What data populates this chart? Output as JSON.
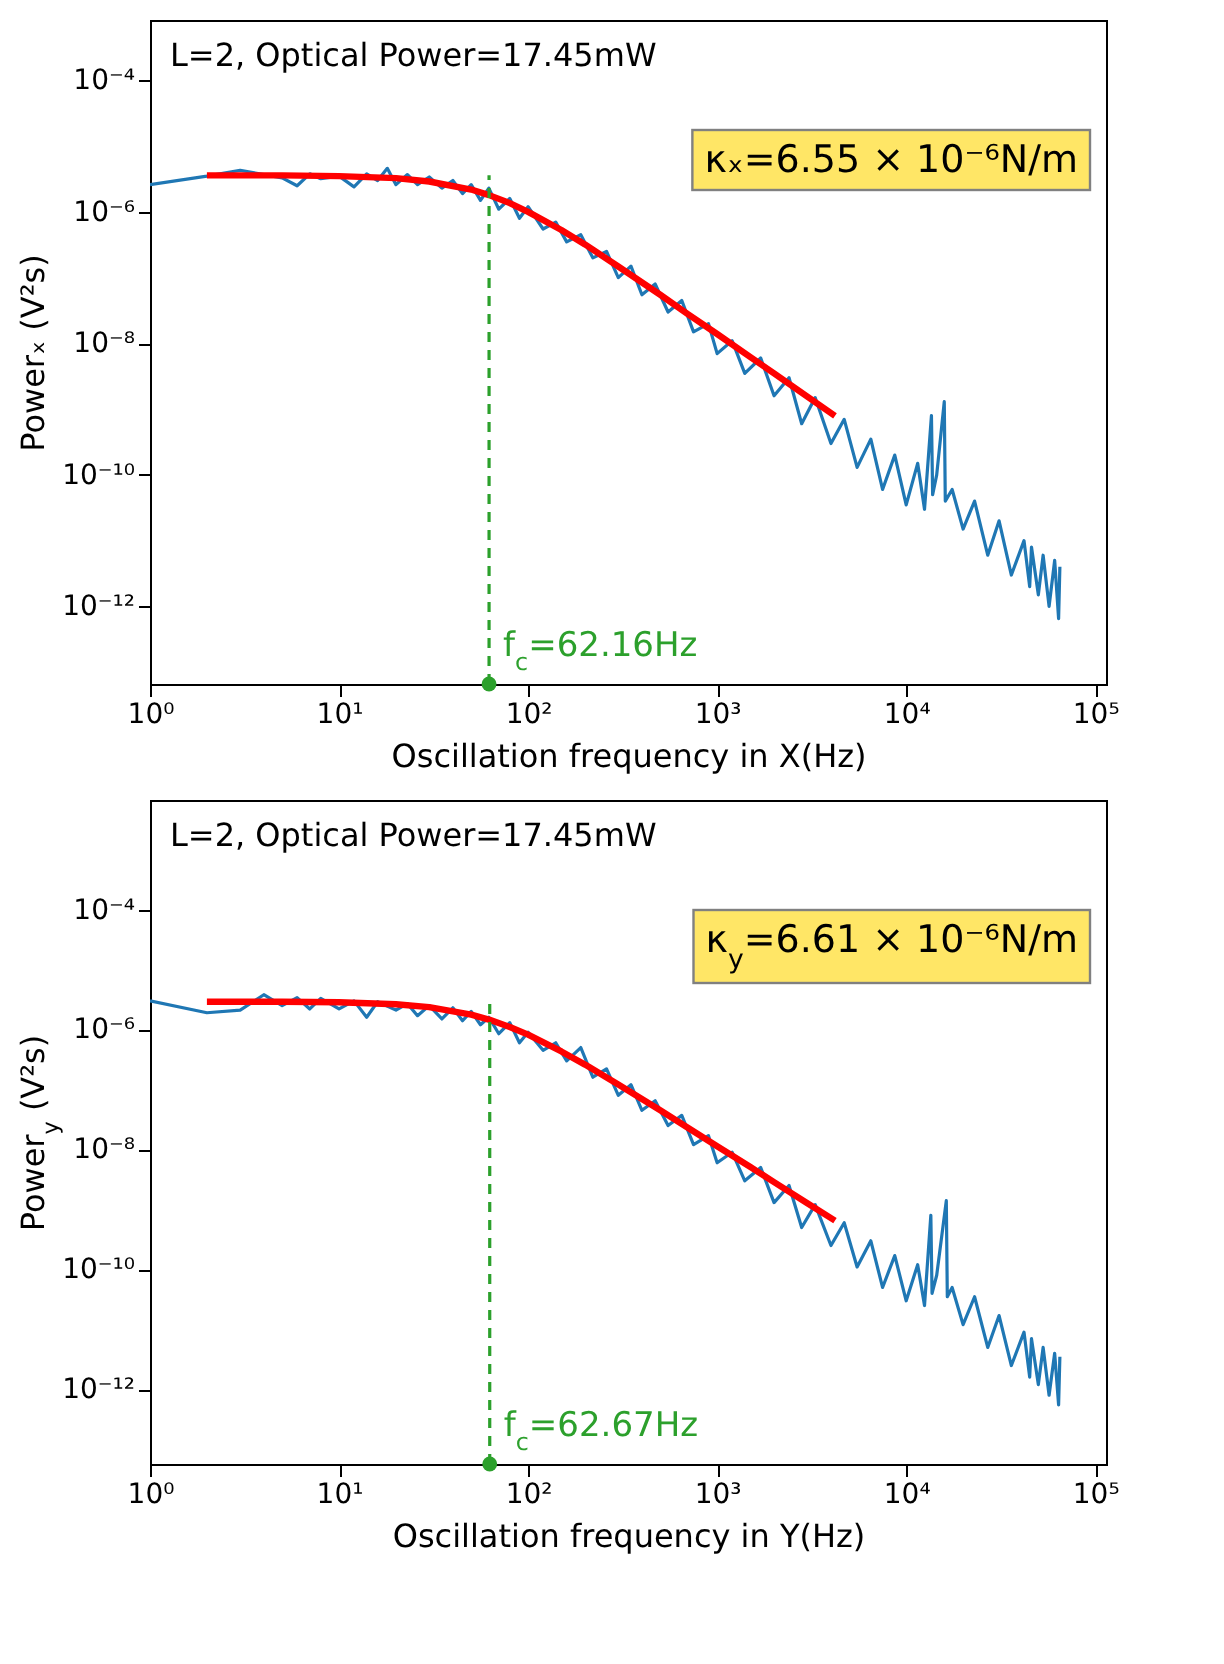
{
  "chart_data": [
    {
      "type": "line",
      "xlabel": "Oscillation frequency in X(Hz)",
      "ylabel": "Powerₓ (V²s)",
      "log": "xy",
      "xlim": [
        1,
        114000
      ],
      "ylim": [
        6.6e-14,
        0.00083
      ],
      "xticks": [
        {
          "value": 1,
          "label": "10⁰"
        },
        {
          "value": 10,
          "label": "10¹"
        },
        {
          "value": 100,
          "label": "10²"
        },
        {
          "value": 1000,
          "label": "10³"
        },
        {
          "value": 10000,
          "label": "10⁴"
        },
        {
          "value": 100000,
          "label": "10⁵"
        }
      ],
      "yticks": [
        {
          "value": 1e-12,
          "label": "10⁻¹²"
        },
        {
          "value": 1e-10,
          "label": "10⁻¹⁰"
        },
        {
          "value": 1e-08,
          "label": "10⁻⁸"
        },
        {
          "value": 1e-06,
          "label": "10⁻⁶"
        },
        {
          "value": 0.0001,
          "label": "10⁻⁴"
        }
      ],
      "annotations": [
        "L=2, Optical Power=17.45mW",
        "κₓ=6.55 × 10⁻⁶N/m"
      ],
      "ref_lines": [
        {
          "axis": "x",
          "value": 62.16,
          "label": "f$_{c}$=62.16Hz",
          "color": "#2ca02c",
          "line_style": "dashed"
        }
      ],
      "series": [
        {
          "color": "#1f77b4",
          "x": [
            1,
            2,
            3,
            4,
            5,
            6,
            7,
            8,
            10,
            12,
            14,
            16,
            18,
            20,
            23,
            26,
            30,
            35,
            40,
            45,
            50,
            56,
            62,
            70,
            80,
            90,
            100,
            120,
            140,
            160,
            190,
            220,
            260,
            300,
            350,
            400,
            470,
            550,
            650,
            750,
            900,
            1000,
            1200,
            1400,
            1700,
            2000,
            2400,
            2800,
            3300,
            4000,
            4700,
            5500,
            6500,
            7500,
            8700,
            10000,
            11500,
            12500,
            13600,
            13800,
            14500,
            15900,
            16100,
            17500,
            20000,
            23000,
            27000,
            31000,
            36000,
            42000,
            45000,
            46000,
            50000,
            53000,
            57000,
            61000,
            64000,
            65000
          ],
          "values": [
            2.6e-06,
            3.5e-06,
            4.3e-06,
            3.7e-06,
            3.3e-06,
            2.5e-06,
            3.8e-06,
            3.2e-06,
            3.5e-06,
            2.4e-06,
            3.8e-06,
            3e-06,
            4.6e-06,
            2.6e-06,
            3.7e-06,
            2.6e-06,
            3.4e-06,
            2.3e-06,
            3e-06,
            1.9e-06,
            2.6e-06,
            1.5e-06,
            2.3e-06,
            1.1e-06,
            1.6e-06,
            8e-07,
            1.2e-06,
            5.5e-07,
            7e-07,
            3.5e-07,
            4.5e-07,
            2e-07,
            2.5e-07,
            1e-07,
            1.5e-07,
            5.5e-08,
            8e-08,
            3e-08,
            4.5e-08,
            1.5e-08,
            2e-08,
            7e-09,
            1.1e-08,
            3.5e-09,
            6e-09,
            1.6e-09,
            3e-09,
            6e-10,
            1.5e-09,
            3e-10,
            7e-10,
            1.3e-10,
            3.5e-10,
            6e-11,
            2e-10,
            3.5e-11,
            1.5e-10,
            3e-11,
            8e-10,
            5e-11,
            1e-10,
            1.3e-09,
            4e-11,
            6e-11,
            1.5e-11,
            4e-11,
            6e-12,
            2e-11,
            3e-12,
            1e-11,
            2e-12,
            8e-12,
            1.5e-12,
            6e-12,
            1e-12,
            5e-12,
            6.5e-13,
            4e-12
          ]
        },
        {
          "color": "#ff0000",
          "x": [
            2,
            5,
            10,
            20,
            30,
            50,
            62.16,
            80,
            100,
            150,
            200,
            300,
            500,
            700,
            1000,
            1500,
            2000,
            3000,
            4200
          ],
          "values": [
            3.6e-06,
            3.6e-06,
            3.5e-06,
            3.26e-06,
            2.9e-06,
            2.19e-06,
            1.8e-06,
            1.36e-06,
            1e-06,
            5.3e-07,
            3.2e-07,
            1.48e-07,
            5.5e-08,
            2.8e-08,
            1.39e-08,
            6.2e-09,
            3.5e-09,
            1.55e-09,
            7.9e-10
          ]
        }
      ]
    },
    {
      "type": "line",
      "xlabel": "Oscillation frequency in Y(Hz)",
      "ylabel": "Power$_{y}$ (V²s)",
      "log": "xy",
      "xlim": [
        1,
        114000
      ],
      "ylim": [
        5.7e-14,
        0.0067
      ],
      "xticks": [
        {
          "value": 1,
          "label": "10⁰"
        },
        {
          "value": 10,
          "label": "10¹"
        },
        {
          "value": 100,
          "label": "10²"
        },
        {
          "value": 1000,
          "label": "10³"
        },
        {
          "value": 10000,
          "label": "10⁴"
        },
        {
          "value": 100000,
          "label": "10⁵"
        }
      ],
      "yticks": [
        {
          "value": 1e-12,
          "label": "10⁻¹²"
        },
        {
          "value": 1e-10,
          "label": "10⁻¹⁰"
        },
        {
          "value": 1e-08,
          "label": "10⁻⁸"
        },
        {
          "value": 1e-06,
          "label": "10⁻⁶"
        },
        {
          "value": 0.0001,
          "label": "10⁻⁴"
        }
      ],
      "annotations": [
        "L=2, Optical Power=17.45mW",
        "κ$_{y}$=6.61 × 10⁻⁶N/m"
      ],
      "ref_lines": [
        {
          "axis": "x",
          "value": 62.67,
          "label": "f$_{c}$=62.67Hz",
          "color": "#2ca02c",
          "line_style": "dashed"
        }
      ],
      "series": [
        {
          "color": "#1f77b4",
          "x": [
            1,
            2,
            3,
            4,
            5,
            6,
            7,
            8,
            10,
            12,
            14,
            16,
            20,
            23,
            26,
            30,
            35,
            40,
            45,
            50,
            56,
            62,
            70,
            80,
            90,
            100,
            120,
            140,
            160,
            190,
            220,
            260,
            300,
            350,
            400,
            470,
            550,
            650,
            750,
            900,
            1000,
            1200,
            1400,
            1700,
            2000,
            2400,
            2800,
            3300,
            4000,
            4700,
            5500,
            6500,
            7500,
            8700,
            10000,
            11500,
            12500,
            13500,
            13700,
            14500,
            16300,
            16500,
            17500,
            20000,
            23000,
            27000,
            31000,
            36000,
            42000,
            45000,
            46000,
            50000,
            53000,
            57000,
            61000,
            64000,
            65000
          ],
          "values": [
            3e-06,
            1.9e-06,
            2.1e-06,
            3.8e-06,
            2.5e-06,
            3.4e-06,
            2.2e-06,
            3.3e-06,
            2.2e-06,
            3e-06,
            1.6e-06,
            2.9e-06,
            2.1e-06,
            2.7e-06,
            1.7e-06,
            2.5e-06,
            1.5e-06,
            2.3e-06,
            1.4e-06,
            2e-06,
            1.2e-06,
            1.6e-06,
            8.5e-07,
            1.3e-06,
            6e-07,
            9e-07,
            4.5e-07,
            6e-07,
            3e-07,
            5e-07,
            1.6e-07,
            2.2e-07,
            8e-08,
            1.2e-07,
            4.5e-08,
            6.5e-08,
            2.5e-08,
            3.7e-08,
            1.2e-08,
            1.7e-08,
            6e-09,
            9e-09,
            3e-09,
            5e-09,
            1.3e-09,
            2.5e-09,
            5e-10,
            1.2e-09,
            2.5e-10,
            6e-10,
            1.1e-10,
            3e-10,
            5e-11,
            1.7e-10,
            3e-11,
            1.2e-10,
            2.5e-11,
            8e-10,
            4e-11,
            8e-11,
            1.4e-09,
            3.5e-11,
            5e-11,
            1.2e-11,
            3.5e-11,
            5e-12,
            1.7e-11,
            2.5e-12,
            9e-12,
            1.6e-12,
            7e-12,
            1.2e-12,
            5e-12,
            8e-13,
            4e-12,
            5.5e-13,
            3.5e-12
          ]
        },
        {
          "color": "#ff0000",
          "x": [
            2,
            5,
            10,
            20,
            30,
            50,
            62.67,
            80,
            100,
            150,
            200,
            300,
            500,
            700,
            1000,
            1500,
            2000,
            3000,
            4200
          ],
          "values": [
            2.9e-06,
            2.9e-06,
            2.85e-06,
            2.63e-06,
            2.36e-06,
            1.77e-06,
            1.45e-06,
            1.1e-06,
            8.2e-07,
            4.3e-07,
            2.6e-07,
            1.21e-07,
            4.5e-08,
            2.3e-08,
            1.13e-08,
            5.1e-09,
            2.85e-09,
            1.27e-09,
            6.5e-10
          ]
        }
      ]
    }
  ]
}
